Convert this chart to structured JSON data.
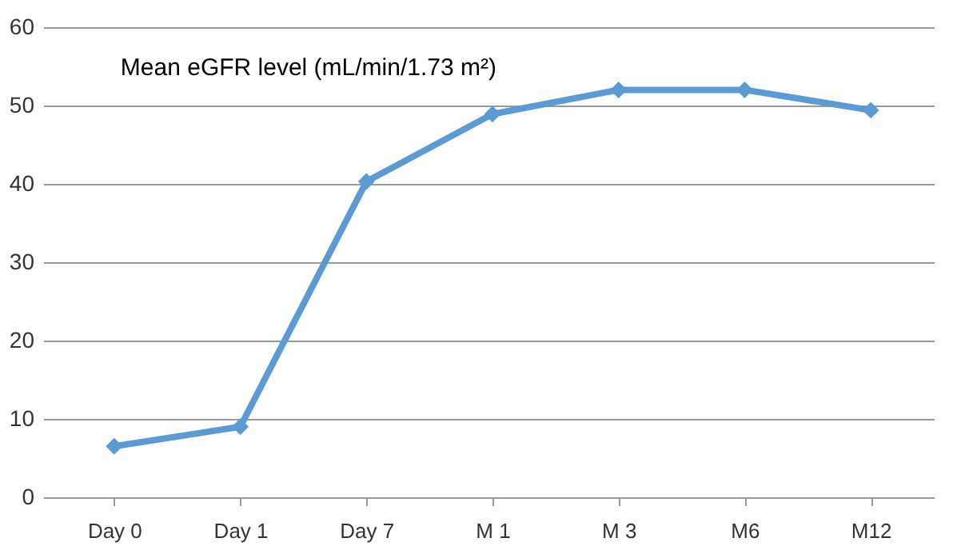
{
  "chart_data": {
    "type": "line",
    "title": "Mean eGFR level (mL/min/1.73 m²)",
    "categories": [
      "Day 0",
      "Day 1",
      "Day 7",
      "M 1",
      "M 3",
      "M6",
      "M12"
    ],
    "series": [
      {
        "color": "#5b9bd5",
        "values": [
          6.5,
          9,
          40.3,
          48.9,
          52,
          52,
          49.4
        ]
      }
    ],
    "ylim": [
      0,
      60
    ],
    "yticks": [
      0,
      10,
      20,
      30,
      40,
      50,
      60
    ],
    "grid": "y",
    "marker": "diamond",
    "line_style": "solid"
  }
}
